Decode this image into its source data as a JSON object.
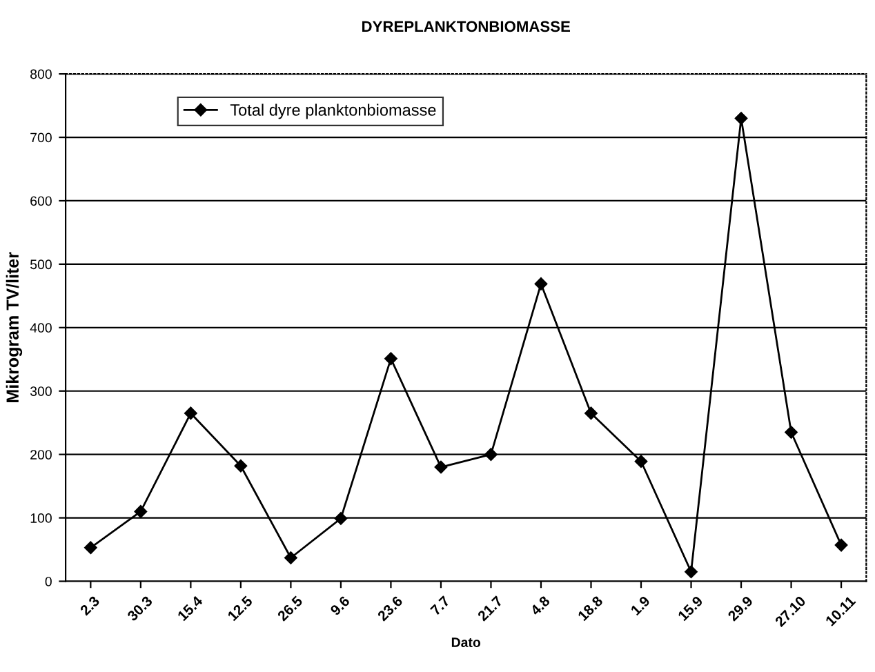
{
  "chart_data": {
    "type": "line",
    "title": "DYREPLANKTONBIOMASSE",
    "xlabel": "Dato",
    "ylabel": "Mikrogram TV/liter",
    "categories": [
      "2.3",
      "30.3",
      "15.4",
      "12.5",
      "26.5",
      "9.6",
      "23.6",
      "7.7",
      "21.7",
      "4.8",
      "18.8",
      "1.9",
      "15.9",
      "29.9",
      "27.10",
      "10.11"
    ],
    "series": [
      {
        "name": "Total dyre planktonbiomasse",
        "color": "#000000",
        "values": [
          53,
          110,
          265,
          182,
          37,
          99,
          351,
          180,
          200,
          469,
          265,
          189,
          15,
          730,
          235,
          57
        ]
      }
    ],
    "ylim": [
      0,
      800
    ],
    "yticks": [
      0,
      100,
      200,
      300,
      400,
      500,
      600,
      700,
      800
    ],
    "grid": "y",
    "legend": "top left",
    "marker": "diamond",
    "line_style": "solid"
  }
}
